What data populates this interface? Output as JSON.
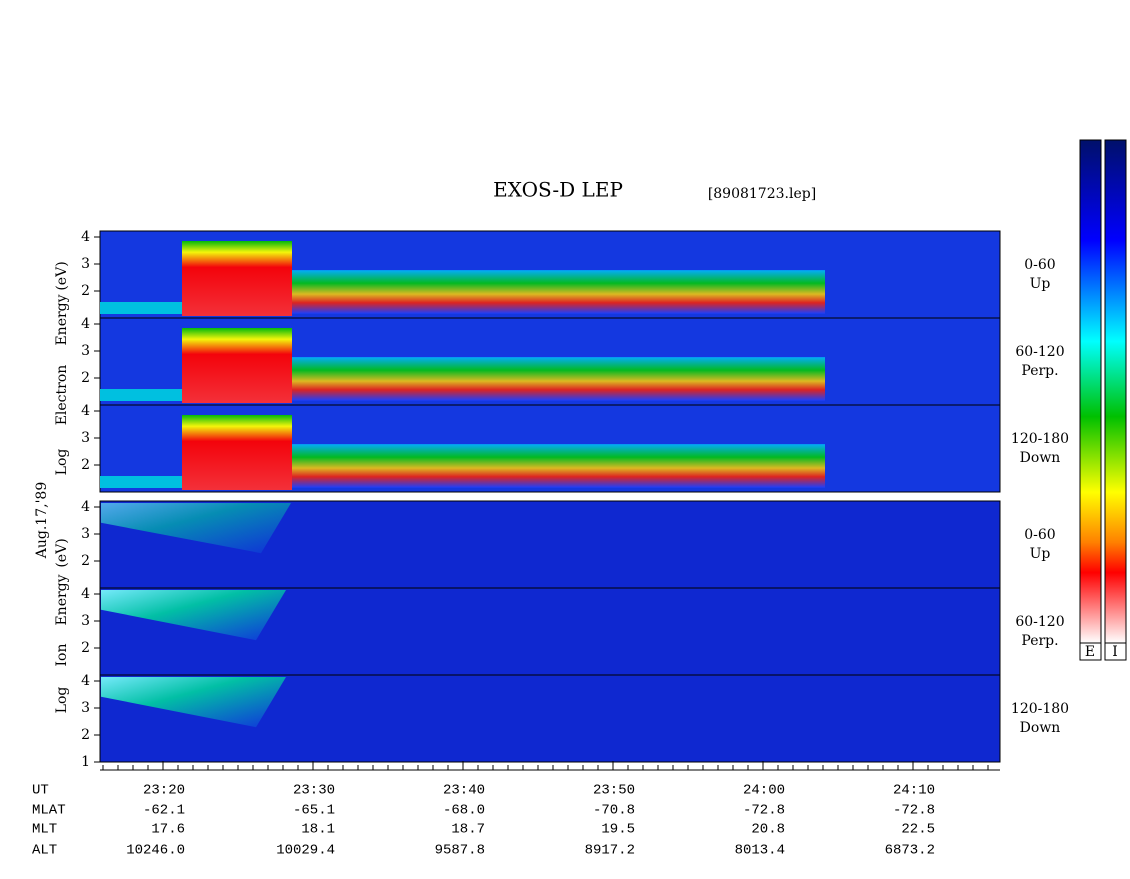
{
  "header": {
    "title": "EXOS-D LEP",
    "file": "[89081723.lep]"
  },
  "date": "Aug.17,'89",
  "groups": [
    {
      "label_parts": [
        "Log",
        "Electron",
        "Energy",
        "(eV)"
      ],
      "panels": [
        {
          "ticks": [
            "4",
            "3",
            "2"
          ],
          "angle": "0-60",
          "direction": "Up"
        },
        {
          "ticks": [
            "4",
            "3",
            "2"
          ],
          "angle": "60-120",
          "direction": "Perp."
        },
        {
          "ticks": [
            "4",
            "3",
            "2"
          ],
          "angle": "120-180",
          "direction": "Down"
        }
      ]
    },
    {
      "label_parts": [
        "Log",
        "Ion",
        "Energy",
        "(eV)"
      ],
      "panels": [
        {
          "ticks": [
            "4",
            "3",
            "2"
          ],
          "angle": "0-60",
          "direction": "Up"
        },
        {
          "ticks": [
            "4",
            "3",
            "2"
          ],
          "angle": "60-120",
          "direction": "Perp."
        },
        {
          "ticks": [
            "4",
            "3",
            "2",
            "1"
          ],
          "angle": "120-180",
          "direction": "Down"
        }
      ]
    }
  ],
  "ephemeris": {
    "names": [
      "UT",
      "MLAT",
      "MLT",
      "ALT"
    ],
    "columns": [
      [
        "23:20",
        "-62.1",
        "17.6",
        "10246.0"
      ],
      [
        "23:30",
        "-65.1",
        "18.1",
        "10029.4"
      ],
      [
        "23:40",
        "-68.0",
        "18.7",
        "9587.8"
      ],
      [
        "23:50",
        "-70.8",
        "19.5",
        "8917.2"
      ],
      [
        "24:00",
        "-72.8",
        "20.8",
        "8013.4"
      ],
      [
        "24:10",
        "-72.8",
        "22.5",
        "6873.2"
      ]
    ]
  },
  "colorbars": [
    "E",
    "I"
  ]
}
